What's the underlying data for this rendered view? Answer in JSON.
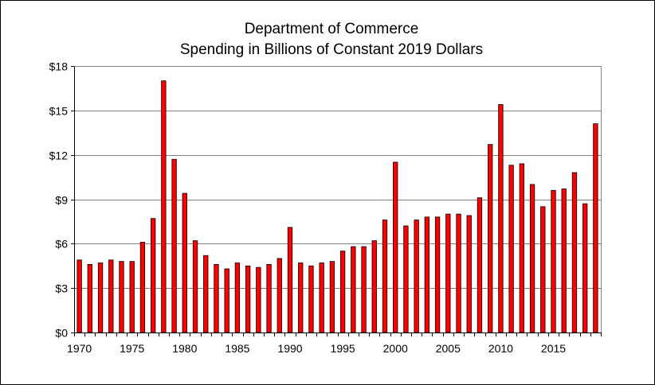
{
  "chart_data": {
    "type": "bar",
    "title": "Department of Commerce",
    "subtitle": "Spending in Billions of Constant 2019 Dollars",
    "xlabel": "",
    "ylabel": "",
    "ylim": [
      0,
      18
    ],
    "y_ticks": [
      0,
      3,
      6,
      9,
      12,
      15,
      18
    ],
    "y_tick_labels": [
      "$0",
      "$3",
      "$6",
      "$9",
      "$12",
      "$15",
      "$18"
    ],
    "x_tick_labels": [
      "1970",
      "1975",
      "1980",
      "1985",
      "1990",
      "1995",
      "2000",
      "2005",
      "2010",
      "2015"
    ],
    "grid": true,
    "legend": "none",
    "bar_color": "#ff0000",
    "categories": [
      1970,
      1971,
      1972,
      1973,
      1974,
      1975,
      1976,
      1977,
      1978,
      1979,
      1980,
      1981,
      1982,
      1983,
      1984,
      1985,
      1986,
      1987,
      1988,
      1989,
      1990,
      1991,
      1992,
      1993,
      1994,
      1995,
      1996,
      1997,
      1998,
      1999,
      2000,
      2001,
      2002,
      2003,
      2004,
      2005,
      2006,
      2007,
      2008,
      2009,
      2010,
      2011,
      2012,
      2013,
      2014,
      2015,
      2016,
      2017,
      2018,
      2019
    ],
    "values": [
      4.9,
      4.6,
      4.7,
      4.9,
      4.8,
      4.8,
      6.1,
      7.7,
      17.0,
      11.7,
      9.4,
      6.2,
      5.2,
      4.6,
      4.3,
      4.7,
      4.5,
      4.4,
      4.6,
      5.0,
      7.1,
      4.7,
      4.5,
      4.7,
      4.8,
      5.5,
      5.8,
      5.8,
      6.2,
      7.6,
      11.5,
      7.2,
      7.6,
      7.8,
      7.8,
      8.0,
      8.0,
      7.9,
      9.1,
      12.7,
      15.4,
      11.3,
      11.4,
      10.0,
      8.5,
      9.6,
      9.7,
      10.8,
      8.7,
      14.1
    ]
  }
}
